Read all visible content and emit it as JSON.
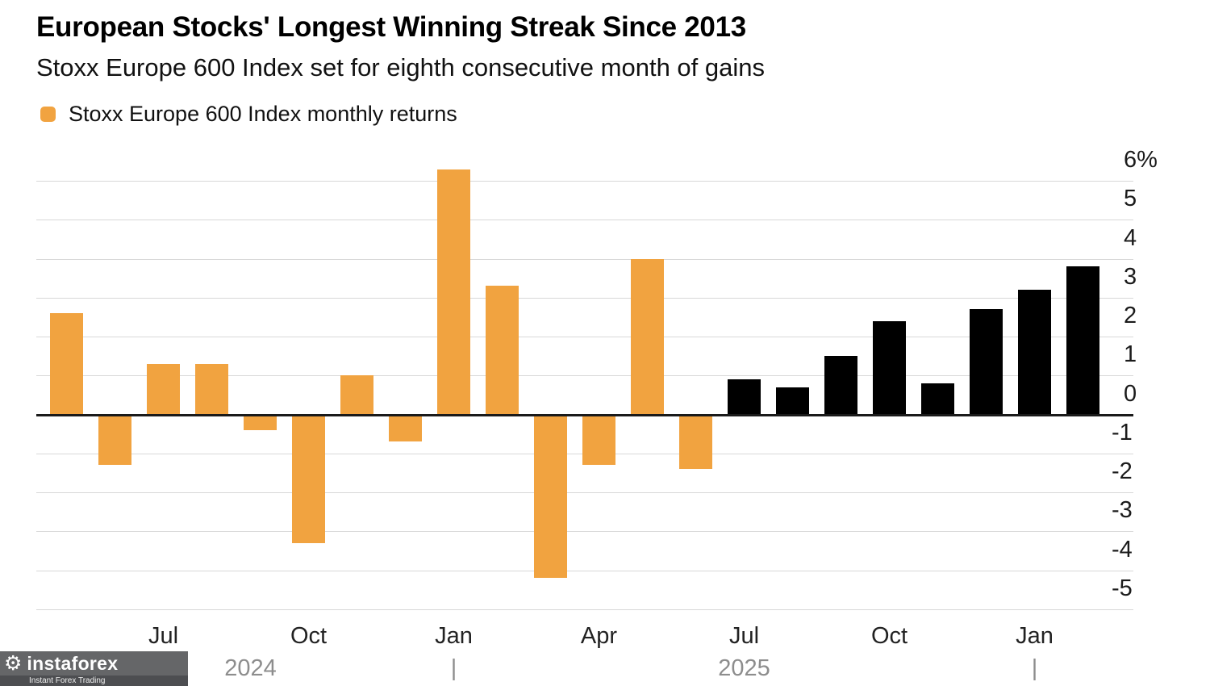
{
  "header": {
    "title": "European Stocks' Longest Winning Streak Since 2013",
    "subtitle": "Stoxx Europe 600 Index set for eighth consecutive month of gains"
  },
  "legend": {
    "label": "Stoxx Europe 600 Index monthly returns",
    "swatch_color": "#F1A340"
  },
  "chart_data": {
    "type": "bar",
    "title": "European Stocks' Longest Winning Streak Since 2013",
    "subtitle": "Stoxx Europe 600 Index set for eighth consecutive month of gains",
    "legend": [
      "Stoxx Europe 600 Index monthly returns"
    ],
    "legend_position": "top-left",
    "grid": true,
    "y_axis_side": "right",
    "ylim": [
      -5,
      6
    ],
    "y_ticks": [
      {
        "value": 6,
        "label": "6%"
      },
      {
        "value": 5,
        "label": "5"
      },
      {
        "value": 4,
        "label": "4"
      },
      {
        "value": 3,
        "label": "3"
      },
      {
        "value": 2,
        "label": "2"
      },
      {
        "value": 1,
        "label": "1"
      },
      {
        "value": 0,
        "label": "0"
      },
      {
        "value": -1,
        "label": "-1"
      },
      {
        "value": -2,
        "label": "-2"
      },
      {
        "value": -3,
        "label": "-3"
      },
      {
        "value": -4,
        "label": "-4"
      },
      {
        "value": -5,
        "label": "-5"
      }
    ],
    "x_ticks": [
      {
        "index": 2,
        "label": "Jul"
      },
      {
        "index": 5,
        "label": "Oct"
      },
      {
        "index": 8,
        "label": "Jan"
      },
      {
        "index": 11,
        "label": "Apr"
      },
      {
        "index": 14,
        "label": "Jul"
      },
      {
        "index": 17,
        "label": "Oct"
      },
      {
        "index": 20,
        "label": "Jan"
      }
    ],
    "year_row": [
      {
        "index": 3.8,
        "label": "2024"
      },
      {
        "index": 8,
        "label": "|"
      },
      {
        "index": 14.0,
        "label": "2025"
      },
      {
        "index": 20,
        "label": "|"
      }
    ],
    "streak_start_index": 14,
    "colors": {
      "past_bars": "#F1A340",
      "streak_bars": "#000000",
      "grid_line": "#D8D8D8",
      "zero_line": "#1A1A1A"
    },
    "series": [
      {
        "name": "Stoxx Europe 600 Index monthly returns",
        "x": [
          "May 2024",
          "Jun 2024",
          "Jul 2024",
          "Aug 2024",
          "Sep 2024",
          "Oct 2024",
          "Nov 2024",
          "Dec 2024",
          "Jan 2025",
          "Feb 2025",
          "Mar 2025",
          "Apr 2025",
          "May 2025",
          "Jun 2025",
          "Jul 2025",
          "Aug 2025",
          "Sep 2025",
          "Oct 2025",
          "Nov 2025",
          "Dec 2025",
          "Jan 2026",
          "Feb 2026"
        ],
        "values": [
          2.6,
          -1.3,
          1.3,
          1.3,
          -0.4,
          -3.3,
          1.0,
          -0.7,
          6.3,
          3.3,
          -4.2,
          -1.3,
          4.0,
          -1.4,
          0.9,
          0.7,
          1.5,
          2.4,
          0.8,
          2.7,
          3.2,
          3.8
        ]
      }
    ]
  },
  "watermark": {
    "gear_icon": "⚙",
    "name": "instaforex",
    "tagline": "Instant Forex Trading"
  }
}
